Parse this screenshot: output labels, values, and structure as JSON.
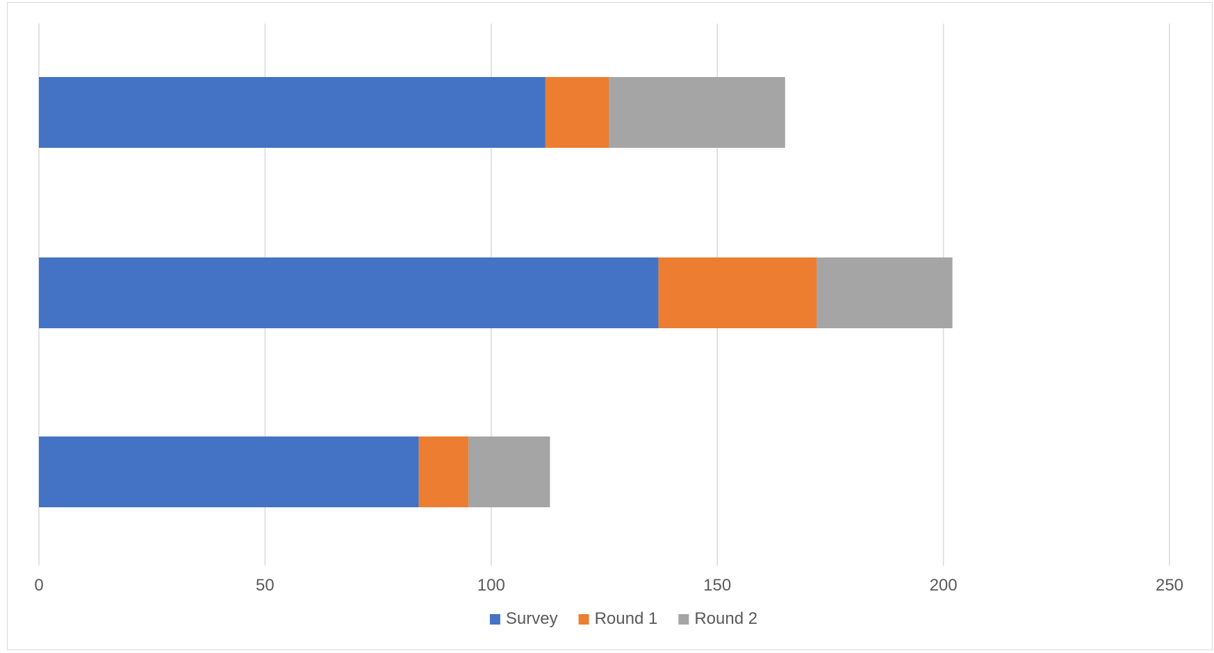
{
  "chart_data": {
    "type": "bar",
    "orientation": "horizontal",
    "stacked": true,
    "title": "",
    "xlabel": "",
    "ylabel": "",
    "categories": [
      "",
      "",
      ""
    ],
    "series": [
      {
        "name": "Survey",
        "color": "#4472C4",
        "values": [
          112,
          137,
          84
        ]
      },
      {
        "name": "Round 1",
        "color": "#ED7D31",
        "values": [
          14,
          35,
          11
        ]
      },
      {
        "name": "Round 2",
        "color": "#A5A5A5",
        "values": [
          39,
          30,
          18
        ]
      }
    ],
    "xlim": [
      0,
      250
    ],
    "x_ticks": [
      "0",
      "50",
      "100",
      "150",
      "200",
      "250"
    ],
    "grid": "vertical",
    "legend_position": "bottom"
  }
}
